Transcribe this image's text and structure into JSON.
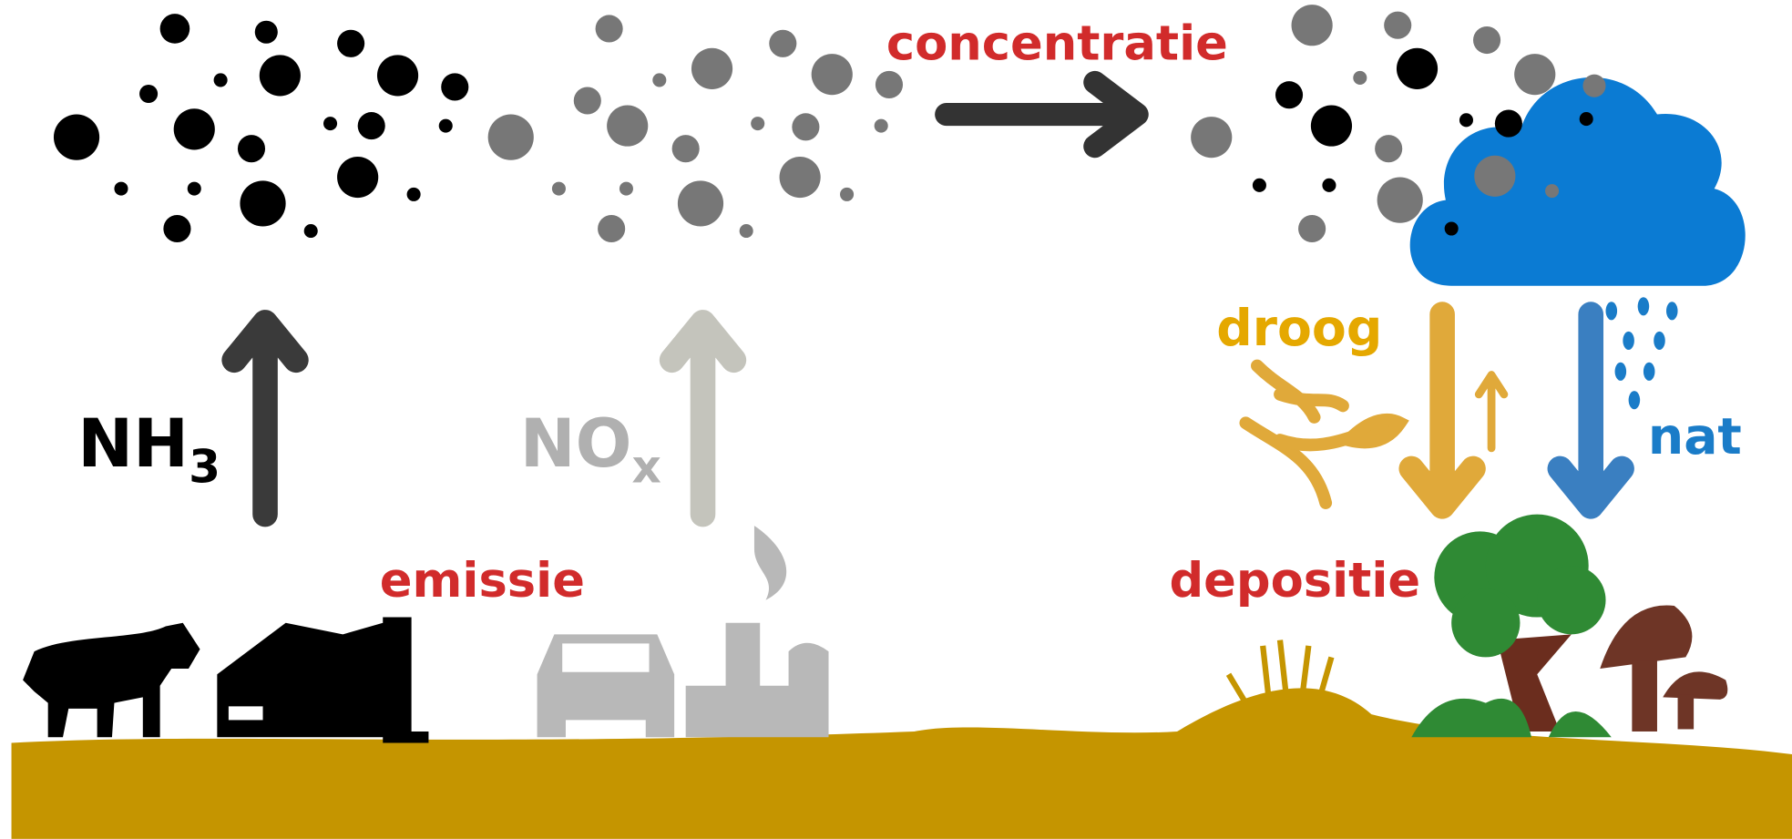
{
  "labels": {
    "concentration": "concentratie",
    "emission": "emissie",
    "deposition": "depositie",
    "dry": "droog",
    "wet": "nat"
  },
  "substances": [
    {
      "formula": "NH",
      "subscript": "3"
    },
    {
      "formula": "NO",
      "subscript": "x"
    }
  ]
}
